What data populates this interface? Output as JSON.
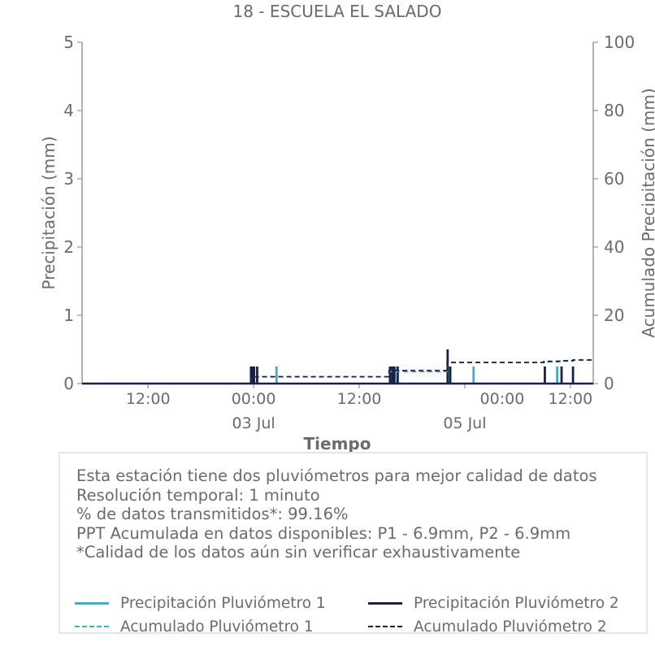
{
  "chart_data": {
    "type": "bar",
    "title": "18 - ESCUELA EL SALADO",
    "xlabel": "Tiempo",
    "ylabel": "Precipitación (mm)",
    "y2label": "Acumulado Precipitación (mm)",
    "ylim": [
      0,
      5
    ],
    "y2lim": [
      0,
      100
    ],
    "yticks": [
      "0",
      "1",
      "2",
      "3",
      "4",
      "5"
    ],
    "y2ticks": [
      "0",
      "20",
      "40",
      "60",
      "80",
      "100"
    ],
    "x_range_hours": [
      -19.5,
      38.6
    ],
    "xticks": [
      {
        "t": -12,
        "label": "12:00"
      },
      {
        "t": 0,
        "label": "00:00",
        "sublabel": "03 Jul"
      },
      {
        "t": 12,
        "label": "12:00"
      },
      {
        "t": 24,
        "label": null,
        "sublabel": "05 Jul"
      },
      {
        "t": 36,
        "label": "12:00"
      }
    ],
    "extra_ticks_bottom_labels": [
      {
        "t": 24,
        "label": "00:00",
        "position": "offset"
      }
    ],
    "grid": false,
    "legend_position": "bottom",
    "series": [
      {
        "name": "Precipitación Pluviómetro 1",
        "kind": "bar",
        "color": "#4aa9bf",
        "points": [
          {
            "t": -0.25,
            "v": 0.25
          },
          {
            "t": 0.0,
            "v": 0.25
          },
          {
            "t": 2.6,
            "v": 0.25
          },
          {
            "t": 15.6,
            "v": 0.25
          },
          {
            "t": 16.0,
            "v": 0.25
          },
          {
            "t": 16.4,
            "v": 0.25
          },
          {
            "t": 22.3,
            "v": 0.25
          },
          {
            "t": 25.0,
            "v": 0.25
          },
          {
            "t": 34.5,
            "v": 0.25
          }
        ]
      },
      {
        "name": "Precipitación Pluviómetro 2",
        "kind": "bar",
        "color": "#1b2144",
        "points": [
          {
            "t": -0.3,
            "v": 0.25
          },
          {
            "t": -0.15,
            "v": 0.25
          },
          {
            "t": 0.05,
            "v": 0.25
          },
          {
            "t": 0.4,
            "v": 0.25
          },
          {
            "t": 15.5,
            "v": 0.25
          },
          {
            "t": 15.75,
            "v": 0.25
          },
          {
            "t": 16.0,
            "v": 0.25
          },
          {
            "t": 16.35,
            "v": 0.25
          },
          {
            "t": 22.05,
            "v": 0.5
          },
          {
            "t": 22.35,
            "v": 0.25
          },
          {
            "t": 33.1,
            "v": 0.25
          },
          {
            "t": 35.0,
            "v": 0.25
          },
          {
            "t": 36.3,
            "v": 0.25
          }
        ]
      },
      {
        "name": "Acumulado Pluviómetro 1",
        "kind": "step",
        "color": "#4aa9bf",
        "dashed": true,
        "points": [
          {
            "t": -19.5,
            "v": 0
          },
          {
            "t": -0.3,
            "v": 0
          },
          {
            "t": -0.3,
            "v": 2.0
          },
          {
            "t": 15.4,
            "v": 2.0
          },
          {
            "t": 15.4,
            "v": 3.5
          },
          {
            "t": 22.0,
            "v": 3.5
          },
          {
            "t": 22.0,
            "v": 6.2
          },
          {
            "t": 33.0,
            "v": 6.2
          },
          {
            "t": 33.0,
            "v": 6.4
          },
          {
            "t": 34.5,
            "v": 6.4
          },
          {
            "t": 34.5,
            "v": 6.6
          },
          {
            "t": 36.3,
            "v": 6.6
          },
          {
            "t": 36.3,
            "v": 6.9
          },
          {
            "t": 38.6,
            "v": 6.9
          }
        ]
      },
      {
        "name": "Acumulado Pluviómetro 2",
        "kind": "step",
        "color": "#1b2144",
        "dashed": true,
        "points": [
          {
            "t": -19.5,
            "v": 0
          },
          {
            "t": -0.3,
            "v": 0
          },
          {
            "t": -0.3,
            "v": 2.0
          },
          {
            "t": 15.4,
            "v": 2.0
          },
          {
            "t": 15.4,
            "v": 3.8
          },
          {
            "t": 22.0,
            "v": 3.8
          },
          {
            "t": 22.0,
            "v": 6.2
          },
          {
            "t": 33.0,
            "v": 6.2
          },
          {
            "t": 33.0,
            "v": 6.5
          },
          {
            "t": 35.0,
            "v": 6.5
          },
          {
            "t": 35.0,
            "v": 6.7
          },
          {
            "t": 36.3,
            "v": 6.7
          },
          {
            "t": 36.3,
            "v": 6.9
          },
          {
            "t": 38.6,
            "v": 6.9
          }
        ]
      }
    ]
  },
  "info": {
    "lines": [
      "Esta estación tiene dos pluviómetros para mejor calidad de datos",
      "Resolución temporal: 1 minuto",
      "% de datos transmitidos*: 99.16%",
      "PPT Acumulada en datos disponibles: P1 - 6.9mm, P2 - 6.9mm",
      "*Calidad de los datos aún sin verificar exhaustivamente"
    ]
  },
  "legend": {
    "items": [
      {
        "label": "Precipitación Pluviómetro 1",
        "color": "#4aa9bf",
        "style": "solid"
      },
      {
        "label": "Precipitación Pluviómetro 2",
        "color": "#1b2144",
        "style": "solid"
      },
      {
        "label": "Acumulado Pluviómetro 1",
        "color": "#4aa9bf",
        "style": "dashed"
      },
      {
        "label": "Acumulado Pluviómetro 2",
        "color": "#1b2144",
        "style": "dashed"
      }
    ]
  }
}
